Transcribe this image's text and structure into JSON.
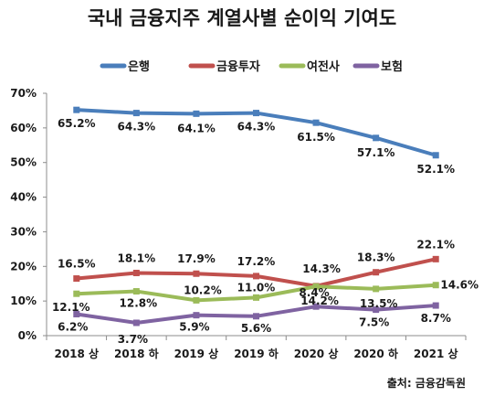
{
  "chart_data": {
    "type": "line",
    "title": "국내 금융지주 계열사별 순이익 기여도",
    "categories": [
      "2018 상",
      "2018 하",
      "2019 상",
      "2019 하",
      "2020 상",
      "2020 하",
      "2021 상"
    ],
    "y_ticks": [
      "0%",
      "10%",
      "20%",
      "30%",
      "40%",
      "50%",
      "60%",
      "70%"
    ],
    "ylim": [
      0,
      70
    ],
    "grid": false,
    "legend_position": "top",
    "source": "출처: 금융감독원",
    "series": [
      {
        "name": "은행",
        "color": "#4a7ebb",
        "values": [
          65.2,
          64.3,
          64.1,
          64.3,
          61.5,
          57.1,
          52.1
        ],
        "labels": [
          "65.2%",
          "64.3%",
          "64.1%",
          "64.3%",
          "61.5%",
          "57.1%",
          "52.1%"
        ]
      },
      {
        "name": "금융투자",
        "color": "#c0504d",
        "values": [
          16.5,
          18.1,
          17.9,
          17.2,
          14.3,
          18.3,
          22.1
        ],
        "labels": [
          "16.5%",
          "18.1%",
          "17.9%",
          "17.2%",
          "14.3%",
          "18.3%",
          "22.1%"
        ]
      },
      {
        "name": "여전사",
        "color": "#9bbb59",
        "values": [
          12.1,
          12.8,
          10.2,
          11.0,
          14.2,
          13.5,
          14.6
        ],
        "labels": [
          "12.1%",
          "12.8%",
          "10.2%",
          "11.0%",
          "14.2%",
          "13.5%",
          "14.6%"
        ]
      },
      {
        "name": "보험",
        "color": "#7f63a1",
        "values": [
          6.2,
          3.7,
          5.9,
          5.6,
          8.4,
          7.5,
          8.7
        ],
        "labels": [
          "6.2%",
          "3.7%",
          "5.9%",
          "5.6%",
          "8.4%",
          "7.5%",
          "8.7%"
        ]
      }
    ]
  }
}
